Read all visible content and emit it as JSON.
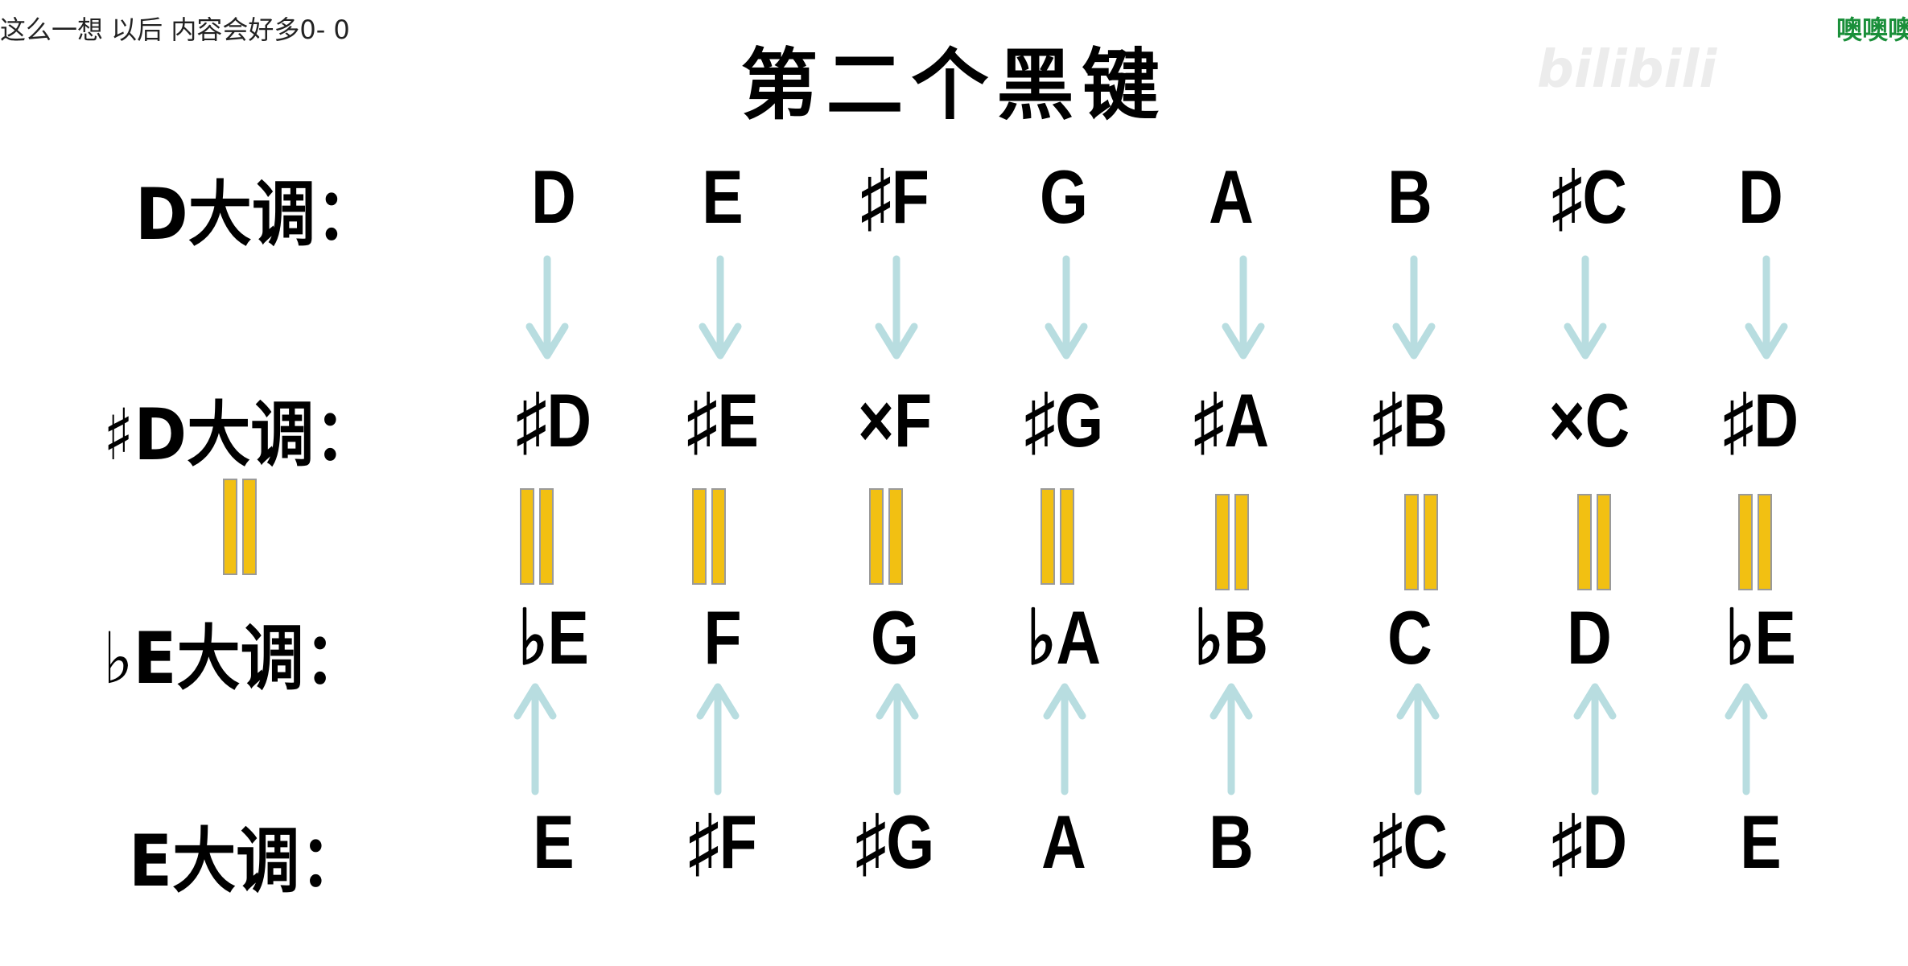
{
  "danmaku": {
    "left": "这么一想  以后  内容会好多0- 0",
    "right": "噢噢噢"
  },
  "title": "第二个黑键",
  "watermark": "bilibili",
  "row_labels": {
    "d_major": "D大调：",
    "d_sharp_major": "♯D大调：",
    "e_flat_major": "♭E大调：",
    "e_major": "E大调："
  },
  "rows": {
    "d_major": [
      "D",
      "E",
      "♯F",
      "G",
      "A",
      "B",
      "♯C",
      "D"
    ],
    "d_sharp_major": [
      "♯D",
      "♯E",
      "×F",
      "♯G",
      "♯A",
      "♯B",
      "×C",
      "♯D"
    ],
    "e_flat_major": [
      "♭E",
      "F",
      "G",
      "♭A",
      "♭B",
      "C",
      "D",
      "♭E"
    ],
    "e_major": [
      "E",
      "♯F",
      "♯G",
      "A",
      "B",
      "♯C",
      "♯D",
      "E"
    ]
  },
  "colors": {
    "arrow": "#b8dde0",
    "equal_bars": "#f2c012",
    "danmaku_right": "#1a8f3a"
  },
  "icons": {
    "arrows_down": "arrow-down-icon",
    "arrows_up": "arrow-up-icon",
    "equals": "enharmonic-equal-icon"
  }
}
